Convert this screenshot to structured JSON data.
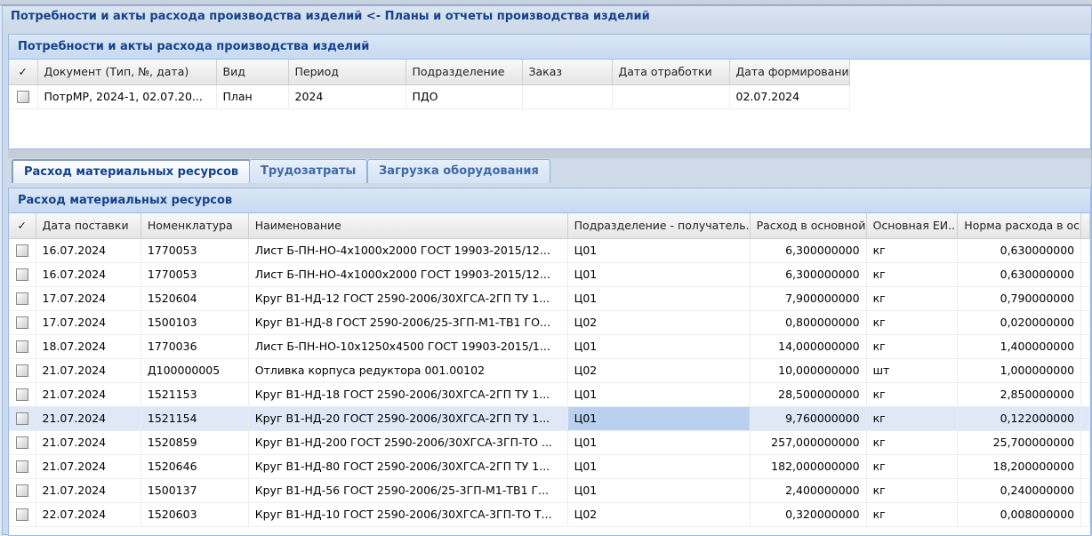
{
  "window_title": "Потребности и акты расхода производства изделий <- Планы и отчеты производства изделий",
  "docs_panel": {
    "title": "Потребности и акты расхода производства изделий",
    "columns": [
      "Документ (Тип, №, дата)",
      "Вид",
      "Период",
      "Подразделение",
      "Заказ",
      "Дата отработки",
      "Дата формировани"
    ],
    "rows": [
      [
        "ПотрМР, 2024-1, 02.07.20...",
        "План",
        "2024",
        "ПДО",
        "",
        "",
        "02.07.2024"
      ]
    ]
  },
  "tabs": [
    {
      "label": "Расход материальных ресурсов",
      "active": true
    },
    {
      "label": "Трудозатраты",
      "active": false
    },
    {
      "label": "Загрузка оборудования",
      "active": false
    }
  ],
  "materials_panel": {
    "title": "Расход материальных ресурсов",
    "columns": [
      "Дата поставки",
      "Номенклатура",
      "Наименование",
      "Подразделение - получатель.",
      "Расход в основной",
      "Основная ЕИ..",
      "Норма расхода в ос"
    ],
    "rows": [
      [
        "16.07.2024",
        "1770053",
        "Лист Б-ПН-НО-4x1000x2000 ГОСТ 19903-2015/12...",
        "Ц01",
        "6,300000000",
        "кг",
        "0,630000000"
      ],
      [
        "16.07.2024",
        "1770053",
        "Лист Б-ПН-НО-4x1000x2000 ГОСТ 19903-2015/12...",
        "Ц01",
        "6,300000000",
        "кг",
        "0,630000000"
      ],
      [
        "17.07.2024",
        "1520604",
        "Круг В1-НД-12 ГОСТ 2590-2006/30ХГСА-2ГП ТУ 1...",
        "Ц01",
        "7,900000000",
        "кг",
        "0,790000000"
      ],
      [
        "17.07.2024",
        "1500103",
        "Круг В1-НД-8 ГОСТ 2590-2006/25-3ГП-М1-ТВ1 ГО...",
        "Ц02",
        "0,800000000",
        "кг",
        "0,020000000"
      ],
      [
        "18.07.2024",
        "1770036",
        "Лист Б-ПН-НО-10x1250x4500 ГОСТ 19903-2015/1...",
        "Ц01",
        "14,000000000",
        "кг",
        "1,400000000"
      ],
      [
        "21.07.2024",
        "Д100000005",
        "Отливка корпуса редуктора 001.00102",
        "Ц02",
        "10,000000000",
        "шт",
        "1,000000000"
      ],
      [
        "21.07.2024",
        "1521153",
        "Круг В1-НД-18 ГОСТ 2590-2006/30ХГСА-2ГП ТУ 1...",
        "Ц01",
        "28,500000000",
        "кг",
        "2,850000000"
      ],
      [
        "21.07.2024",
        "1521154",
        "Круг В1-НД-20 ГОСТ 2590-2006/30ХГСА-2ГП ТУ 1...",
        "Ц01",
        "9,760000000",
        "кг",
        "0,122000000"
      ],
      [
        "21.07.2024",
        "1520859",
        "Круг В1-НД-200 ГОСТ 2590-2006/30ХГСА-3ГП-ТО ...",
        "Ц01",
        "257,000000000",
        "кг",
        "25,700000000"
      ],
      [
        "21.07.2024",
        "1520646",
        "Круг В1-НД-80 ГОСТ 2590-2006/30ХГСА-2ГП ТУ 1...",
        "Ц01",
        "182,000000000",
        "кг",
        "18,200000000"
      ],
      [
        "21.07.2024",
        "1500137",
        "Круг В1-НД-56 ГОСТ 2590-2006/25-3ГП-М1-ТВ1 Г...",
        "Ц01",
        "2,400000000",
        "кг",
        "0,240000000"
      ],
      [
        "22.07.2024",
        "1520603",
        "Круг В1-НД-10 ГОСТ 2590-2006/30ХГСА-3ГП-ТО Т...",
        "Ц02",
        "0,320000000",
        "кг",
        "0,008000000"
      ]
    ],
    "selected_row": 7
  },
  "check_header": "✓"
}
